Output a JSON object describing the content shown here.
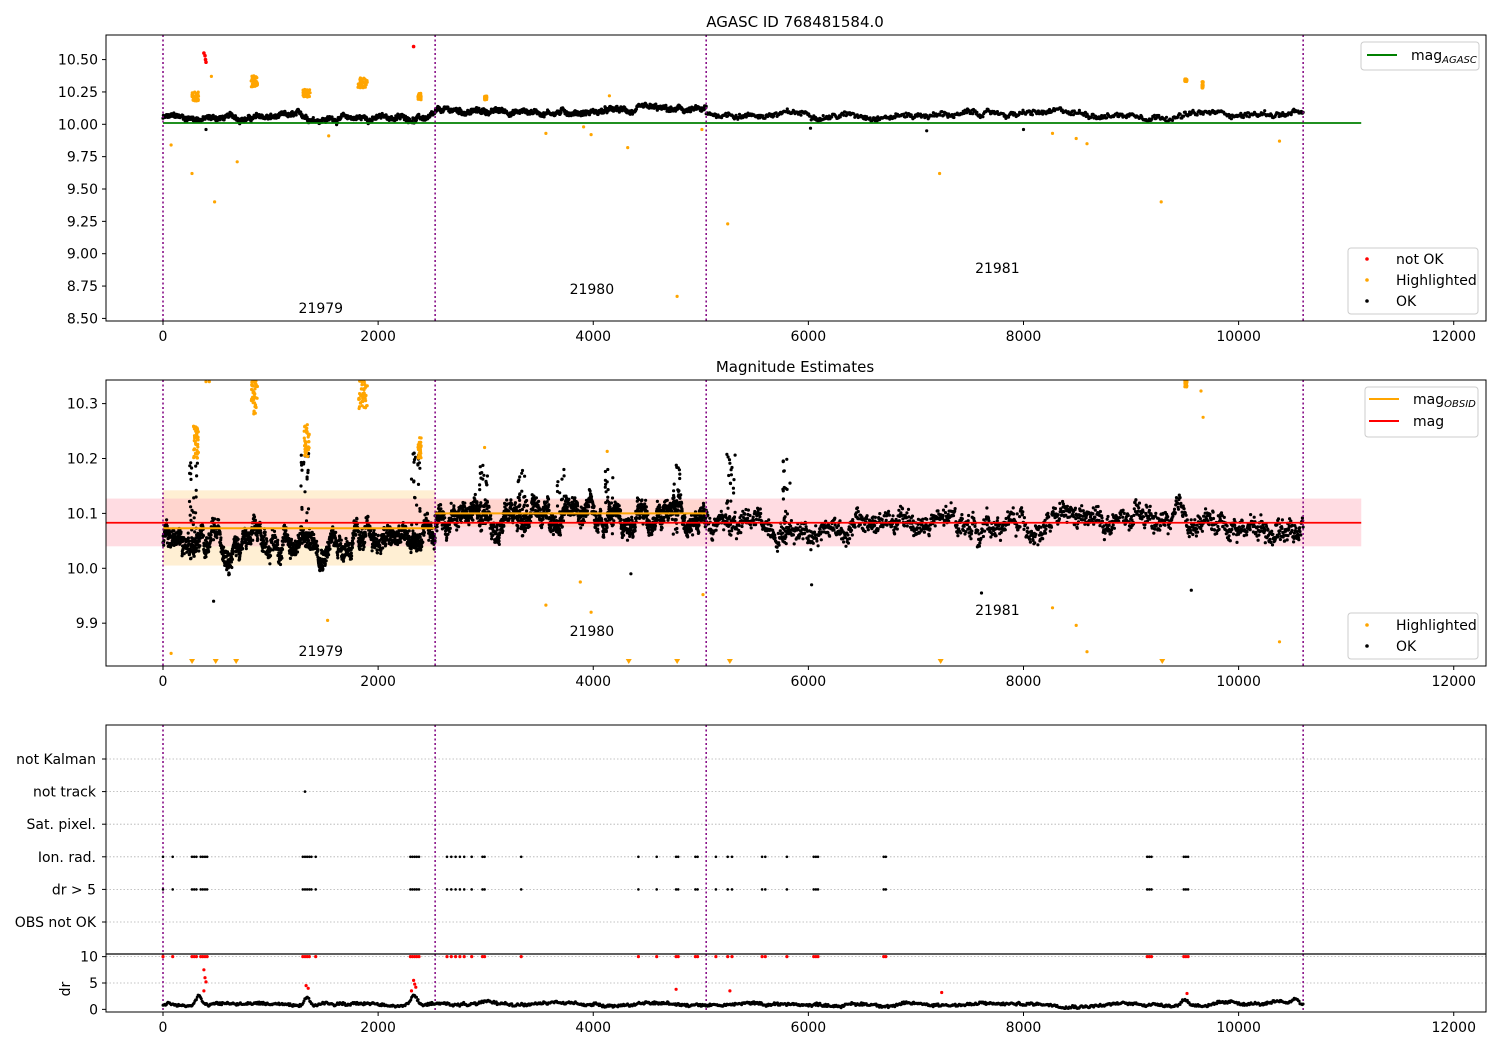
{
  "figure": {
    "title_top": "AGASC ID 768481584.0",
    "title_mid": "Magnitude Estimates"
  },
  "colors": {
    "ok": "#000000",
    "highlighted": "#ffa500",
    "not_ok": "#ff0000",
    "mag_agasc": "#008000",
    "mag_obsid": "#ffa500",
    "mag": "#ff0000",
    "obsid_boundary": "#800080",
    "band_obsid": "#ffe4b5",
    "band_mag": "#ffc0cb",
    "grid": "#b0b0b0"
  },
  "chart_data": [
    {
      "id": "top",
      "type": "scatter",
      "title": "AGASC ID 768481584.0",
      "xlim": [
        -530,
        12300
      ],
      "ylim": [
        8.48,
        10.69
      ],
      "xticks": [
        0,
        2000,
        4000,
        6000,
        8000,
        10000,
        12000
      ],
      "yticks": [
        8.5,
        8.75,
        9.0,
        9.25,
        9.5,
        9.75,
        10.0,
        10.25,
        10.5
      ],
      "ytick_labels": [
        "8.50",
        "8.75",
        "9.00",
        "9.25",
        "9.50",
        "9.75",
        "10.00",
        "10.25",
        "10.50"
      ],
      "legend_upper": {
        "position": "upper-right",
        "entries": [
          {
            "label": "mag",
            "sub": "AGASC",
            "kind": "line",
            "color": "#008000"
          }
        ]
      },
      "legend_lower": {
        "position": "lower-right",
        "entries": [
          {
            "label": "not OK",
            "kind": "dot",
            "color": "#ff0000"
          },
          {
            "label": "Highlighted",
            "kind": "dot",
            "color": "#ffa500"
          },
          {
            "label": "OK",
            "kind": "dot",
            "color": "#000000"
          }
        ]
      },
      "obsid_lines": [
        0,
        2530,
        5050,
        10600
      ],
      "obsid_labels": [
        {
          "text": "21979",
          "x": 1260,
          "y": 8.54
        },
        {
          "text": "21980",
          "x": 3780,
          "y": 8.69
        },
        {
          "text": "21981",
          "x": 7550,
          "y": 8.85
        }
      ],
      "mag_agasc": {
        "value": 10.01,
        "x": [
          0,
          11140
        ]
      },
      "ok_segments": [
        {
          "x": [
            0,
            2530
          ],
          "center": 10.05,
          "amp": 0.05
        },
        {
          "x": [
            2530,
            5050
          ],
          "center": 10.1,
          "amp": 0.05
        },
        {
          "x": [
            5050,
            10600
          ],
          "center": 10.08,
          "amp": 0.05
        }
      ],
      "ok_outliers": [
        [
          6020,
          9.97
        ],
        [
          8000,
          9.96
        ],
        [
          7100,
          9.95
        ],
        [
          400,
          9.96
        ]
      ],
      "highlighted_clusters": [
        {
          "x": [
            270,
            330
          ],
          "y": [
            10.18,
            10.25
          ]
        },
        {
          "x": [
            820,
            880
          ],
          "y": [
            10.29,
            10.38
          ]
        },
        {
          "x": [
            1300,
            1370
          ],
          "y": [
            10.21,
            10.27
          ]
        },
        {
          "x": [
            1810,
            1900
          ],
          "y": [
            10.28,
            10.36
          ]
        },
        {
          "x": [
            2370,
            2400
          ],
          "y": [
            10.19,
            10.24
          ]
        },
        {
          "x": [
            2990,
            3010
          ],
          "y": [
            10.19,
            10.22
          ]
        },
        {
          "x": [
            9500,
            9520
          ],
          "y": [
            10.33,
            10.35
          ]
        },
        {
          "x": [
            9660,
            9670
          ],
          "y": [
            10.28,
            10.33
          ]
        }
      ],
      "highlighted_points": [
        [
          75,
          9.84
        ],
        [
          270,
          9.62
        ],
        [
          480,
          9.4
        ],
        [
          690,
          9.71
        ],
        [
          1540,
          9.91
        ],
        [
          3560,
          9.93
        ],
        [
          3910,
          9.98
        ],
        [
          3980,
          9.92
        ],
        [
          4320,
          9.82
        ],
        [
          4780,
          8.67
        ],
        [
          5010,
          9.96
        ],
        [
          5250,
          9.23
        ],
        [
          7220,
          9.62
        ],
        [
          8270,
          9.93
        ],
        [
          8490,
          9.89
        ],
        [
          8590,
          9.85
        ],
        [
          9280,
          9.4
        ],
        [
          10380,
          9.87
        ],
        [
          450,
          10.37
        ],
        [
          4150,
          10.22
        ]
      ],
      "not_ok_points": [
        [
          380,
          10.55
        ],
        [
          390,
          10.53
        ],
        [
          395,
          10.5
        ],
        [
          400,
          10.48
        ],
        [
          2330,
          10.6
        ]
      ]
    },
    {
      "id": "mid",
      "type": "scatter",
      "title": "Magnitude Estimates",
      "xlim": [
        -530,
        12300
      ],
      "ylim": [
        9.822,
        10.343
      ],
      "xticks": [
        0,
        2000,
        4000,
        6000,
        8000,
        10000,
        12000
      ],
      "yticks": [
        9.9,
        10.0,
        10.1,
        10.2,
        10.3
      ],
      "ytick_labels": [
        "9.9",
        "10.0",
        "10.1",
        "10.2",
        "10.3"
      ],
      "legend_upper": {
        "position": "upper-right",
        "entries": [
          {
            "label": "mag",
            "sub": "OBSID",
            "kind": "line",
            "color": "#ffa500"
          },
          {
            "label": "mag",
            "kind": "line",
            "color": "#ff0000"
          }
        ]
      },
      "legend_lower": {
        "position": "lower-right",
        "entries": [
          {
            "label": "Highlighted",
            "kind": "dot",
            "color": "#ffa500"
          },
          {
            "label": "OK",
            "kind": "dot",
            "color": "#000000"
          }
        ]
      },
      "obsid_lines": [
        0,
        2530,
        5050,
        10600
      ],
      "obsid_labels": [
        {
          "text": "21979",
          "x": 1260,
          "y": 9.84
        },
        {
          "text": "21980",
          "x": 3780,
          "y": 9.877
        },
        {
          "text": "21981",
          "x": 7550,
          "y": 9.915
        }
      ],
      "mag": {
        "value": 10.083,
        "band": [
          10.04,
          10.127
        ],
        "x": [
          -530,
          11140
        ]
      },
      "mag_obsid": [
        {
          "x": [
            0,
            2530
          ],
          "value": 10.073,
          "band": [
            10.005,
            10.142
          ]
        },
        {
          "x": [
            2530,
            5050
          ],
          "value": 10.1,
          "band": [
            10.075,
            10.125
          ]
        }
      ],
      "ok_segments": [
        {
          "x": [
            0,
            2530
          ],
          "center": 10.05,
          "amp": 0.045
        },
        {
          "x": [
            2530,
            5050
          ],
          "center": 10.1,
          "amp": 0.045
        },
        {
          "x": [
            5050,
            10600
          ],
          "center": 10.08,
          "amp": 0.045
        }
      ],
      "ok_spikes": [
        [
          280,
          10.2
        ],
        [
          1320,
          10.21
        ],
        [
          2350,
          10.21
        ],
        [
          2980,
          10.19
        ],
        [
          3340,
          10.18
        ],
        [
          3700,
          10.19
        ],
        [
          4150,
          10.18
        ],
        [
          4780,
          10.19
        ],
        [
          5280,
          10.21
        ],
        [
          5800,
          10.2
        ]
      ],
      "ok_outliers": [
        [
          470,
          9.94
        ],
        [
          6030,
          9.97
        ],
        [
          7610,
          9.955
        ],
        [
          9560,
          9.96
        ],
        [
          4350,
          9.99
        ]
      ],
      "highlighted_clusters": [
        {
          "x": [
            280,
            330
          ],
          "y": [
            10.2,
            10.26
          ]
        },
        {
          "x": [
            820,
            880
          ],
          "y": [
            10.28,
            10.343
          ]
        },
        {
          "x": [
            1310,
            1360
          ],
          "y": [
            10.2,
            10.27
          ]
        },
        {
          "x": [
            1810,
            1900
          ],
          "y": [
            10.29,
            10.343
          ]
        },
        {
          "x": [
            2370,
            2400
          ],
          "y": [
            10.2,
            10.24
          ]
        },
        {
          "x": [
            9500,
            9520
          ],
          "y": [
            10.33,
            10.343
          ]
        }
      ],
      "highlighted_points": [
        [
          75,
          9.845
        ],
        [
          1530,
          9.905
        ],
        [
          2990,
          10.22
        ],
        [
          3560,
          9.933
        ],
        [
          3880,
          9.975
        ],
        [
          3980,
          9.92
        ],
        [
          4130,
          10.213
        ],
        [
          5020,
          9.952
        ],
        [
          8270,
          9.928
        ],
        [
          8490,
          9.896
        ],
        [
          8590,
          9.848
        ],
        [
          9650,
          10.323
        ],
        [
          9670,
          10.275
        ],
        [
          10380,
          9.866
        ],
        [
          400,
          10.34
        ],
        [
          430,
          10.34
        ]
      ],
      "clipped_below": [
        270,
        490,
        680,
        4330,
        4780,
        5270,
        7230,
        9290
      ]
    },
    {
      "id": "flags",
      "type": "scatter",
      "xlim": [
        -530,
        12300
      ],
      "categories": [
        "OBS not OK",
        "dr > 5",
        "Ion. rad.",
        "Sat. pixel.",
        "not track",
        "not Kalman"
      ],
      "obsid_lines": [
        0,
        2530,
        5050,
        10600
      ],
      "flag_points": {
        "dr > 5": [
          0,
          90,
          270,
          290,
          310,
          350,
          370,
          390,
          410,
          1300,
          1320,
          1340,
          1360,
          1380,
          1420,
          2300,
          2320,
          2340,
          2360,
          2380,
          2640,
          2680,
          2720,
          2760,
          2800,
          2870,
          2970,
          2990,
          3330,
          4420,
          4590,
          4770,
          4790,
          4950,
          4970,
          5140,
          5250,
          5290,
          5570,
          5600,
          5800,
          6050,
          6070,
          6090,
          6700,
          6720,
          9150,
          9170,
          9190,
          9490,
          9510,
          9530
        ],
        "Ion. rad.": [
          0,
          90,
          270,
          290,
          310,
          350,
          370,
          390,
          410,
          1300,
          1320,
          1340,
          1360,
          1380,
          1420,
          2300,
          2320,
          2340,
          2360,
          2380,
          2640,
          2680,
          2720,
          2760,
          2800,
          2870,
          2970,
          2990,
          3330,
          4420,
          4590,
          4770,
          4790,
          4950,
          4970,
          5140,
          5250,
          5290,
          5570,
          5600,
          5800,
          6050,
          6070,
          6090,
          6700,
          6720,
          9150,
          9170,
          9190,
          9490,
          9510,
          9530
        ],
        "not track": [
          1320
        ]
      }
    },
    {
      "id": "dr",
      "type": "scatter",
      "ylabel": "dr",
      "xlim": [
        -530,
        12300
      ],
      "ylim": [
        -0.5,
        10.5
      ],
      "xticks": [
        0,
        2000,
        4000,
        6000,
        8000,
        10000,
        12000
      ],
      "yticks": [
        0,
        5,
        10
      ],
      "obsid_lines": [
        0,
        2530,
        5050,
        10600
      ],
      "baseline": {
        "center": 1.0,
        "amp": 0.7,
        "x": [
          0,
          10600
        ]
      },
      "bumps": [
        [
          330,
          3.0
        ],
        [
          1340,
          2.5
        ],
        [
          2330,
          2.8
        ],
        [
          9500,
          2.2
        ],
        [
          10530,
          2.0
        ]
      ],
      "not_ok_points": [
        [
          0,
          10
        ],
        [
          90,
          10
        ],
        [
          270,
          10
        ],
        [
          290,
          10
        ],
        [
          310,
          10
        ],
        [
          350,
          10
        ],
        [
          370,
          10
        ],
        [
          390,
          10
        ],
        [
          410,
          10
        ],
        [
          1300,
          10
        ],
        [
          1320,
          10
        ],
        [
          1340,
          10
        ],
        [
          1360,
          10
        ],
        [
          1420,
          10
        ],
        [
          2300,
          10
        ],
        [
          2320,
          10
        ],
        [
          2340,
          10
        ],
        [
          2360,
          10
        ],
        [
          2380,
          10
        ],
        [
          2640,
          10
        ],
        [
          2680,
          10
        ],
        [
          2720,
          10
        ],
        [
          2760,
          10
        ],
        [
          2800,
          10
        ],
        [
          2870,
          10
        ],
        [
          2970,
          10
        ],
        [
          2990,
          10
        ],
        [
          3330,
          10
        ],
        [
          4420,
          10
        ],
        [
          4590,
          10
        ],
        [
          4770,
          10
        ],
        [
          4790,
          10
        ],
        [
          4950,
          10
        ],
        [
          4970,
          10
        ],
        [
          5140,
          10
        ],
        [
          5250,
          10
        ],
        [
          5290,
          10
        ],
        [
          5570,
          10
        ],
        [
          5600,
          10
        ],
        [
          5800,
          10
        ],
        [
          6050,
          10
        ],
        [
          6070,
          10
        ],
        [
          6090,
          10
        ],
        [
          6700,
          10
        ],
        [
          6720,
          10
        ],
        [
          9150,
          10
        ],
        [
          9170,
          10
        ],
        [
          9190,
          10
        ],
        [
          9490,
          10
        ],
        [
          9510,
          10
        ],
        [
          9530,
          10
        ],
        [
          380,
          7.5
        ],
        [
          390,
          6.0
        ],
        [
          400,
          5.2
        ],
        [
          1330,
          4.5
        ],
        [
          1350,
          4.0
        ],
        [
          2330,
          5.5
        ],
        [
          2340,
          4.8
        ],
        [
          2350,
          4.2
        ],
        [
          2310,
          3.5
        ],
        [
          4770,
          3.8
        ],
        [
          5270,
          3.5
        ],
        [
          7240,
          3.2
        ],
        [
          9520,
          3.0
        ],
        [
          380,
          3.5
        ]
      ]
    }
  ]
}
